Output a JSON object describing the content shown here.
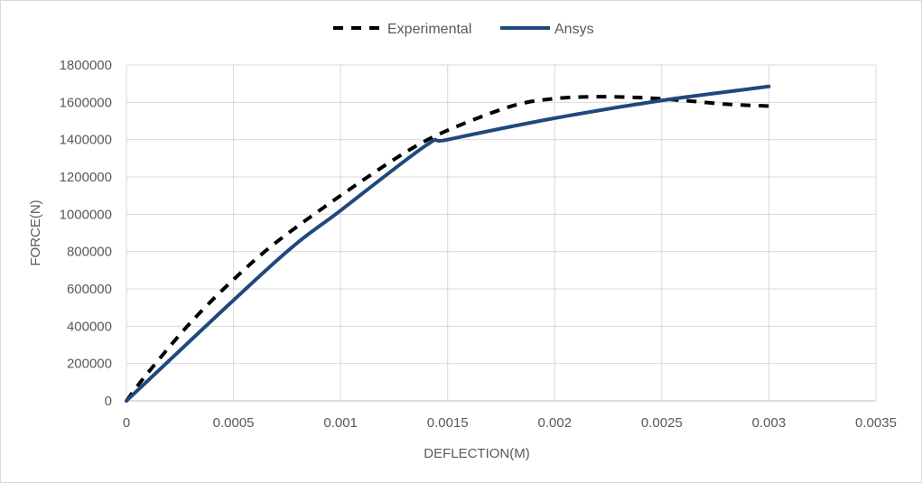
{
  "chart_data": {
    "type": "line",
    "title": "",
    "xlabel": "DEFLECTION(M)",
    "ylabel": "FORCE(N)",
    "xlim": [
      0,
      0.0035
    ],
    "ylim": [
      0,
      1800000
    ],
    "x_ticks": [
      "0",
      "0.0005",
      "0.001",
      "0.0015",
      "0.002",
      "0.0025",
      "0.003",
      "0.0035"
    ],
    "x_tick_values": [
      0,
      0.0005,
      0.001,
      0.0015,
      0.002,
      0.0025,
      0.003,
      0.0035
    ],
    "y_ticks": [
      "0",
      "200000",
      "400000",
      "600000",
      "800000",
      "1000000",
      "1200000",
      "1400000",
      "1600000",
      "1800000"
    ],
    "y_tick_values": [
      0,
      200000,
      400000,
      600000,
      800000,
      1000000,
      1200000,
      1400000,
      1600000,
      1800000
    ],
    "grid": true,
    "legend_position": "top-center",
    "series": [
      {
        "name": "Experimental",
        "style": "dashed",
        "color": "#000000",
        "x": [
          0,
          0.0001,
          0.0003,
          0.0005,
          0.0007,
          0.001,
          0.0013,
          0.0015,
          0.0018,
          0.002,
          0.0022,
          0.0024,
          0.0026,
          0.0028,
          0.003
        ],
        "y": [
          0,
          150000,
          420000,
          650000,
          850000,
          1100000,
          1330000,
          1450000,
          1580000,
          1620000,
          1630000,
          1625000,
          1610000,
          1590000,
          1580000
        ]
      },
      {
        "name": "Ansys",
        "style": "solid",
        "color": "#1f497d",
        "x": [
          0,
          0.0007,
          0.001,
          0.0014,
          0.0015,
          0.002,
          0.0025,
          0.003
        ],
        "y": [
          0,
          750000,
          1020000,
          1370000,
          1400000,
          1515000,
          1610000,
          1685000
        ]
      }
    ]
  }
}
